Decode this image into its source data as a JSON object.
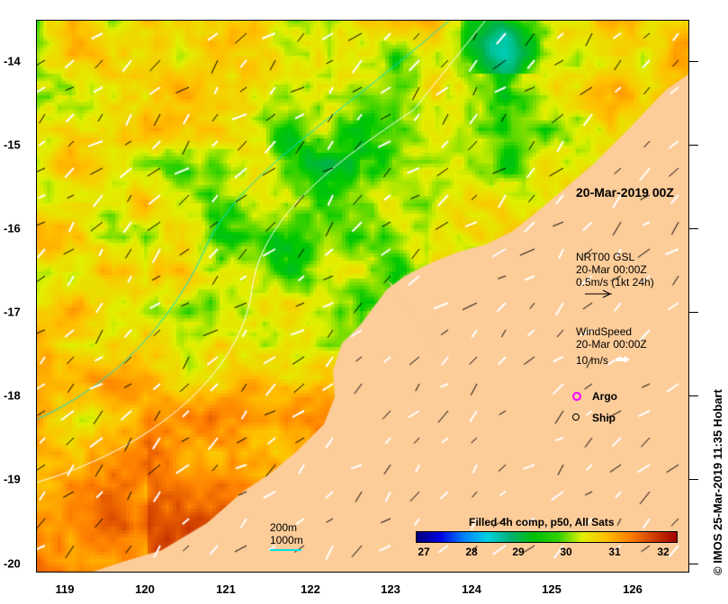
{
  "map": {
    "x_ticks": [
      "119",
      "120",
      "121",
      "122",
      "123",
      "124",
      "125",
      "126"
    ],
    "y_ticks": [
      "-14",
      "-15",
      "-16",
      "-17",
      "-18",
      "-19",
      "-20"
    ],
    "date_label": "20-Mar-2019 00Z",
    "currents": {
      "line1": "NRT00 GSL",
      "line2": "20-Mar 00:00Z",
      "line3": "0.5m/s (1kt 24h)"
    },
    "wind": {
      "line1": "WindSpeed",
      "line2": "20-Mar 00:00Z",
      "line3": "10 m/s"
    },
    "markers": {
      "argo": "Argo",
      "ship": "Ship"
    },
    "isobaths": {
      "a": "200m",
      "b": "1000m"
    },
    "colorbar": {
      "title": "Filled 4h comp, p50, All Sats",
      "labels": [
        "27",
        "28",
        "29",
        "30",
        "31",
        "32"
      ],
      "range": [
        26.8,
        32.3
      ]
    },
    "stamp": "© IMOS 25-Mar-2019 11:35 Hobart",
    "colors": {
      "land": "#fccc99",
      "isobath_1000": "#00e0e0"
    }
  }
}
